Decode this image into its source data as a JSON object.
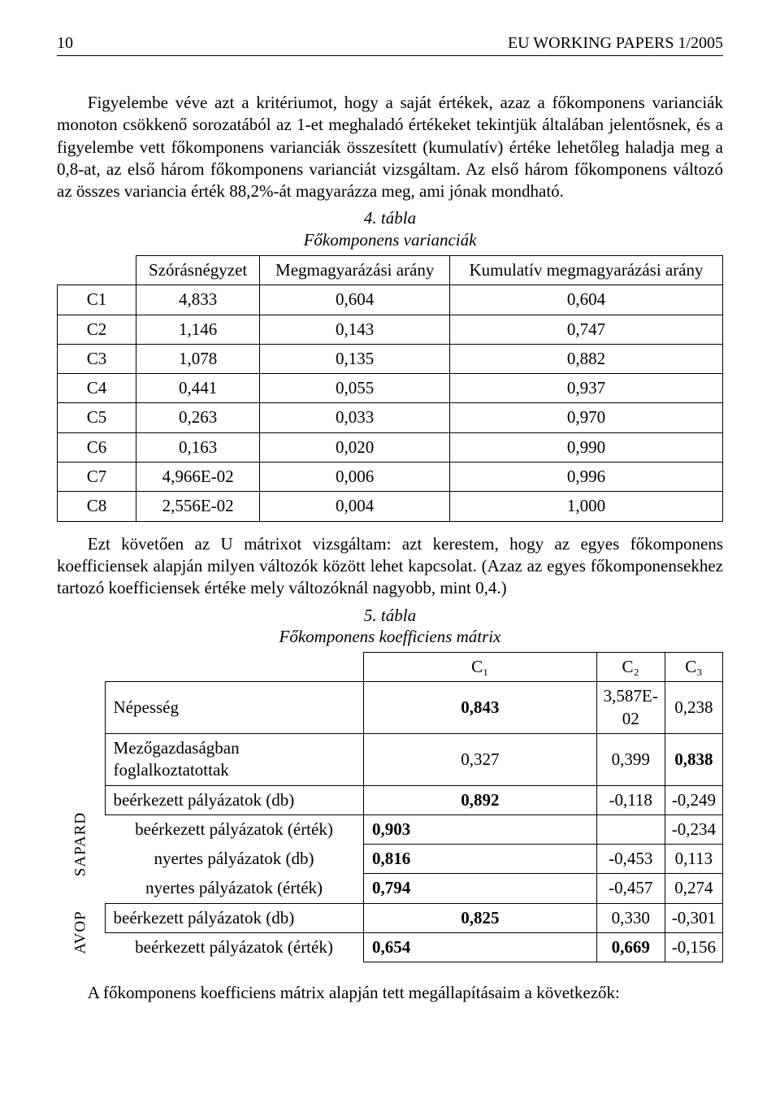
{
  "header": {
    "page_number": "10",
    "running_title": "EU WORKING PAPERS 1/2005"
  },
  "paragraphs": {
    "p1": "Figyelembe véve azt a kritériumot, hogy a saját értékek, azaz a főkomponens varianciák monoton csökkenő sorozatából az 1-et meghaladó értékeket tekintjük általában jelentősnek, és a figyelembe vett főkomponens varianciák összesített (kumulatív) értéke lehetőleg haladja meg a 0,8-at, az első három főkomponens varianciát vizsgáltam. Az első három főkomponens változó az összes variancia érték 88,2%-át magyarázza meg, ami jónak mondható.",
    "p2": "Ezt követően az U mátrixot vizsgáltam: azt kerestem, hogy az egyes főkomponens koefficiensek alapján milyen változók között lehet kapcsolat. (Azaz az egyes főkomponensekhez tartozó koefficiensek értéke mely változóknál nagyobb, mint 0,4.)",
    "p3": "A főkomponens koefficiens mátrix alapján tett megállapításaim a következők:"
  },
  "table1": {
    "caption_num": "4. tábla",
    "caption_title": "Főkomponens varianciák",
    "headers": {
      "h1": "Szórásnégyzet",
      "h2": "Megmagyarázási arány",
      "h3": "Kumulatív megmagyarázási arány"
    },
    "rows": [
      {
        "label": "C1",
        "v1": "4,833",
        "v2": "0,604",
        "v3": "0,604"
      },
      {
        "label": "C2",
        "v1": "1,146",
        "v2": "0,143",
        "v3": "0,747"
      },
      {
        "label": "C3",
        "v1": "1,078",
        "v2": "0,135",
        "v3": "0,882"
      },
      {
        "label": "C4",
        "v1": "0,441",
        "v2": "0,055",
        "v3": "0,937"
      },
      {
        "label": "C5",
        "v1": "0,263",
        "v2": "0,033",
        "v3": "0,970"
      },
      {
        "label": "C6",
        "v1": "0,163",
        "v2": "0,020",
        "v3": "0,990"
      },
      {
        "label": "C7",
        "v1": "4,966E-02",
        "v2": "0,006",
        "v3": "0,996"
      },
      {
        "label": "C8",
        "v1": "2,556E-02",
        "v2": "0,004",
        "v3": "1,000"
      }
    ]
  },
  "table2": {
    "caption_num": "5. tábla",
    "caption_title": "Főkomponens koefficiens mátrix",
    "col_headers": {
      "c1": "C₁",
      "c2": "C₂",
      "c3": "C₃"
    },
    "group_labels": {
      "sapard": "SAPARD",
      "avop": "AVOP"
    },
    "rows": [
      {
        "group": "",
        "label": "Népesség",
        "c1": "0,843",
        "c1b": true,
        "c2": "3,587E-02",
        "c2b": false,
        "c3": "0,238",
        "c3b": false
      },
      {
        "group": "",
        "label": "Mezőgazdaságban foglalkoztatottak",
        "c1": "0,327",
        "c1b": false,
        "c2": "0,399",
        "c2b": false,
        "c3": "0,838",
        "c3b": true
      },
      {
        "group": "sapard",
        "label": "beérkezett pályázatok (db)",
        "c1": "0,892",
        "c1b": true,
        "c2": "-0,118",
        "c2b": false,
        "c3": "-0,249",
        "c3b": false
      },
      {
        "group": "sapard",
        "label": "beérkezett pályázatok (érték)",
        "c1": "0,903",
        "c1b": true,
        "c2": "",
        "c2b": false,
        "c3": "-0,234",
        "c3b": false
      },
      {
        "group": "sapard",
        "label": "nyertes pályázatok (db)",
        "c1": "0,816",
        "c1b": true,
        "c2": "-0,453",
        "c2b": false,
        "c3": "0,113",
        "c3b": false
      },
      {
        "group": "sapard",
        "label": "nyertes pályázatok (érték)",
        "c1": "0,794",
        "c1b": true,
        "c2": "-0,457",
        "c2b": false,
        "c3": "0,274",
        "c3b": false
      },
      {
        "group": "avop",
        "label": "beérkezett pályázatok (db)",
        "c1": "0,825",
        "c1b": true,
        "c2": "0,330",
        "c2b": false,
        "c3": "-0,301",
        "c3b": false
      },
      {
        "group": "avop",
        "label": "beérkezett pályázatok (érték)",
        "c1": "0,654",
        "c1b": true,
        "c2": "0,669",
        "c2b": true,
        "c3": "-0,156",
        "c3b": false
      }
    ]
  }
}
